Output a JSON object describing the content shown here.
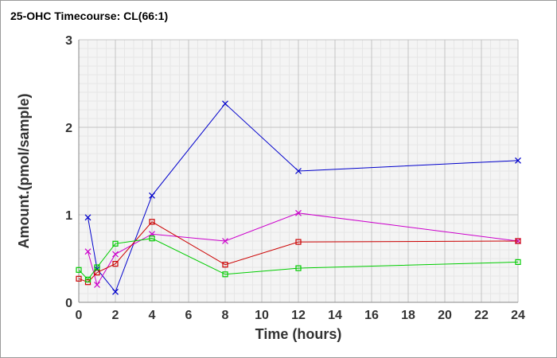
{
  "chart_data": {
    "type": "line",
    "title": "25-OHC Timecourse: CL(66:1)",
    "xlabel": "Time (hours)",
    "ylabel": "Amount.(pmol/sample)",
    "xlim": [
      0,
      24
    ],
    "ylim": [
      0,
      3
    ],
    "x_ticks": [
      0,
      2,
      4,
      6,
      8,
      10,
      12,
      14,
      16,
      18,
      20,
      22,
      24
    ],
    "y_ticks": [
      0,
      1,
      2,
      3
    ],
    "grid": true,
    "series": [
      {
        "color": "#0000cc",
        "marker": "x",
        "x": [
          0.5,
          1,
          2,
          4,
          8,
          12,
          24
        ],
        "y": [
          0.97,
          0.38,
          0.12,
          1.22,
          2.27,
          1.5,
          1.62
        ]
      },
      {
        "color": "#cc00cc",
        "marker": "x",
        "x": [
          0.5,
          1,
          2,
          4,
          8,
          12,
          24
        ],
        "y": [
          0.58,
          0.2,
          0.55,
          0.78,
          0.7,
          1.02,
          0.7
        ]
      },
      {
        "color": "#cc0000",
        "marker": "square",
        "x": [
          0,
          0.5,
          1,
          2,
          4,
          8,
          12,
          24
        ],
        "y": [
          0.27,
          0.23,
          0.34,
          0.44,
          0.92,
          0.43,
          0.69,
          0.7
        ]
      },
      {
        "color": "#00cc00",
        "marker": "square",
        "x": [
          0,
          0.5,
          1,
          2,
          4,
          8,
          12,
          24
        ],
        "y": [
          0.37,
          0.26,
          0.4,
          0.67,
          0.73,
          0.32,
          0.39,
          0.46
        ]
      }
    ]
  }
}
